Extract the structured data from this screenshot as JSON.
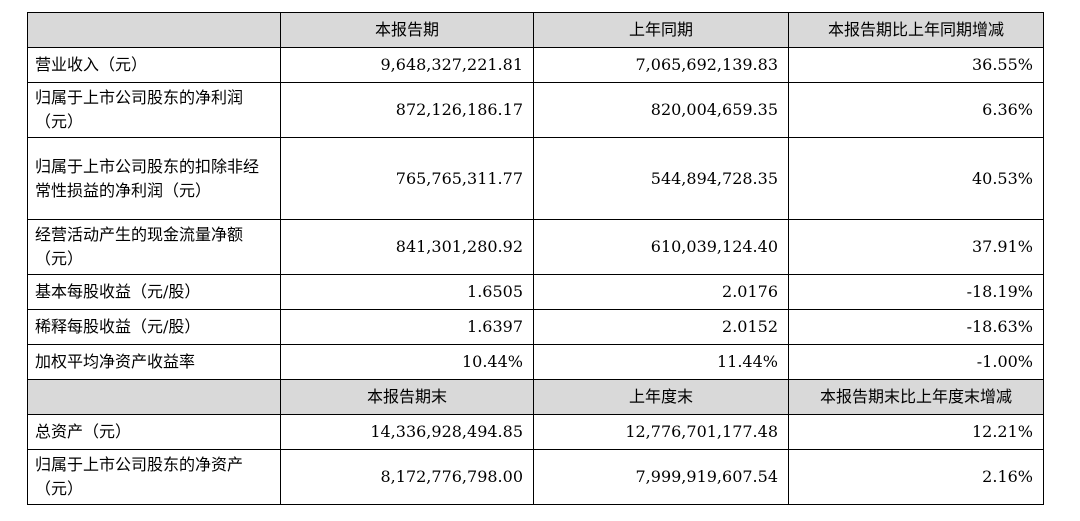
{
  "header1": [
    "",
    "本报告期",
    "上年同期",
    "本报告期比上年同期增减"
  ],
  "rows1": [
    {
      "label": "营业收入（元）",
      "cur": "9,648,327,221.81",
      "prev": "7,065,692,139.83",
      "chg": "36.55%"
    },
    {
      "label": "归属于上市公司股东的净利润（元）",
      "cur": "872,126,186.17",
      "prev": "820,004,659.35",
      "chg": "6.36%"
    },
    {
      "label": "归属于上市公司股东的扣除非经常性损益的净利润（元）",
      "cur": "765,765,311.77",
      "prev": "544,894,728.35",
      "chg": "40.53%"
    },
    {
      "label": "经营活动产生的现金流量净额（元）",
      "cur": "841,301,280.92",
      "prev": "610,039,124.40",
      "chg": "37.91%"
    },
    {
      "label": "基本每股收益（元/股）",
      "cur": "1.6505",
      "prev": "2.0176",
      "chg": "-18.19%"
    },
    {
      "label": "稀释每股收益（元/股）",
      "cur": "1.6397",
      "prev": "2.0152",
      "chg": "-18.63%"
    },
    {
      "label": "加权平均净资产收益率",
      "cur": "10.44%",
      "prev": "11.44%",
      "chg": "-1.00%"
    }
  ],
  "header2": [
    "",
    "本报告期末",
    "上年度末",
    "本报告期末比上年度末增减"
  ],
  "rows2": [
    {
      "label": "总资产（元）",
      "cur": "14,336,928,494.85",
      "prev": "12,776,701,177.48",
      "chg": "12.21%"
    },
    {
      "label": "归属于上市公司股东的净资产（元）",
      "cur": "8,172,776,798.00",
      "prev": "7,999,919,607.54",
      "chg": "2.16%"
    }
  ]
}
